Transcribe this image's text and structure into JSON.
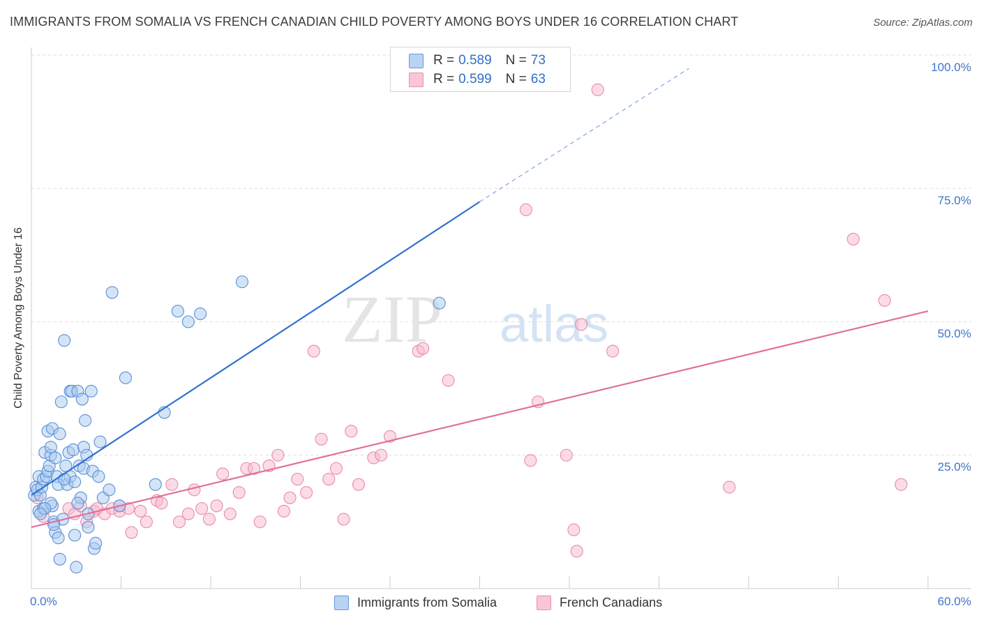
{
  "title": "IMMIGRANTS FROM SOMALIA VS FRENCH CANADIAN CHILD POVERTY AMONG BOYS UNDER 16 CORRELATION CHART",
  "source": "Source: ZipAtlas.com",
  "watermark": {
    "zip": "ZIP",
    "atlas": "atlas"
  },
  "legend": {
    "somalia": {
      "r_label": "R =",
      "r_value": "0.589",
      "n_label": "N =",
      "n_value": "73"
    },
    "french": {
      "r_label": "R =",
      "r_value": "0.599",
      "n_label": "N =",
      "n_value": "63"
    }
  },
  "bottom_legend": {
    "somalia": "Immigrants from Somalia",
    "french": "French Canadians"
  },
  "colors": {
    "somalia_fill": "#a9c9f0",
    "somalia_stroke": "#5b8fd6",
    "somalia_line": "#2f72cf",
    "french_fill": "#f7b9cd",
    "french_stroke": "#e88aa8",
    "french_line": "#e0709a",
    "tick_label": "#3f74c9",
    "grid": "#dddddd"
  },
  "chart_data": {
    "type": "scatter",
    "title": "IMMIGRANTS FROM SOMALIA VS FRENCH CANADIAN CHILD POVERTY AMONG BOYS UNDER 16 CORRELATION CHART",
    "xlabel": "",
    "ylabel": "Child Poverty Among Boys Under 16",
    "xlim": [
      0,
      60
    ],
    "ylim": [
      0,
      100
    ],
    "x_tick_labels": [
      "0.0%",
      "60.0%"
    ],
    "y_ticks": [
      25,
      50,
      75,
      100
    ],
    "y_tick_labels": [
      "25.0%",
      "50.0%",
      "75.0%",
      "100.0%"
    ],
    "grid": "horizontal dashed",
    "series": [
      {
        "name": "Immigrants from Somalia",
        "R": 0.589,
        "N": 73,
        "trend": {
          "x0": 0,
          "y0": 17.5,
          "x1": 30,
          "y1": 72.5,
          "dashed_to": [
            44,
            97.5
          ]
        },
        "points": [
          [
            0.2,
            17.5
          ],
          [
            0.3,
            19
          ],
          [
            0.4,
            18.5
          ],
          [
            0.5,
            21
          ],
          [
            0.5,
            14.5
          ],
          [
            0.6,
            17.5
          ],
          [
            0.7,
            19
          ],
          [
            0.8,
            15
          ],
          [
            0.8,
            20.5
          ],
          [
            0.9,
            25.5
          ],
          [
            1.0,
            21
          ],
          [
            1.1,
            29.5
          ],
          [
            1.1,
            22
          ],
          [
            1.2,
            23
          ],
          [
            1.3,
            25
          ],
          [
            1.3,
            26.5
          ],
          [
            1.4,
            30
          ],
          [
            1.4,
            15.5
          ],
          [
            1.5,
            12.5
          ],
          [
            1.6,
            24.5
          ],
          [
            1.6,
            10.5
          ],
          [
            1.7,
            21
          ],
          [
            1.8,
            9.5
          ],
          [
            1.8,
            19.5
          ],
          [
            1.9,
            29
          ],
          [
            1.9,
            5.5
          ],
          [
            2.0,
            35
          ],
          [
            2.1,
            13
          ],
          [
            2.2,
            46.5
          ],
          [
            2.3,
            23
          ],
          [
            2.4,
            19.5
          ],
          [
            2.5,
            25.5
          ],
          [
            2.6,
            37
          ],
          [
            2.6,
            21
          ],
          [
            2.7,
            37
          ],
          [
            2.8,
            26
          ],
          [
            2.9,
            10
          ],
          [
            2.9,
            20
          ],
          [
            3.0,
            4
          ],
          [
            3.1,
            37
          ],
          [
            3.2,
            23
          ],
          [
            3.3,
            17
          ],
          [
            3.4,
            35.5
          ],
          [
            3.5,
            22.5
          ],
          [
            3.5,
            26.5
          ],
          [
            3.6,
            31.5
          ],
          [
            3.7,
            25
          ],
          [
            3.8,
            11.5
          ],
          [
            3.8,
            14
          ],
          [
            4.0,
            37
          ],
          [
            4.1,
            22
          ],
          [
            4.2,
            7.5
          ],
          [
            4.3,
            8.5
          ],
          [
            4.5,
            21
          ],
          [
            4.6,
            27.5
          ],
          [
            4.8,
            17
          ],
          [
            5.2,
            18.5
          ],
          [
            5.4,
            55.5
          ],
          [
            5.9,
            15.5
          ],
          [
            6.3,
            39.5
          ],
          [
            8.3,
            19.5
          ],
          [
            8.9,
            33
          ],
          [
            9.8,
            52
          ],
          [
            10.5,
            50
          ],
          [
            11.3,
            51.5
          ],
          [
            14.1,
            57.5
          ],
          [
            27.3,
            53.5
          ],
          [
            1.3,
            16
          ],
          [
            0.9,
            15
          ],
          [
            2.2,
            20.5
          ],
          [
            3.1,
            16
          ],
          [
            1.5,
            12
          ],
          [
            0.6,
            14
          ]
        ]
      },
      {
        "name": "French Canadians",
        "R": 0.599,
        "N": 63,
        "trend": {
          "x0": 0,
          "y0": 11.5,
          "x1": 60,
          "y1": 52
        },
        "points": [
          [
            0.4,
            17
          ],
          [
            0.8,
            13.5
          ],
          [
            2.5,
            15
          ],
          [
            2.9,
            14
          ],
          [
            3.3,
            15.5
          ],
          [
            3.7,
            12.5
          ],
          [
            4.2,
            14.5
          ],
          [
            4.4,
            15
          ],
          [
            4.9,
            14
          ],
          [
            5.4,
            15
          ],
          [
            5.9,
            14.5
          ],
          [
            6.5,
            15
          ],
          [
            6.7,
            10.5
          ],
          [
            7.3,
            14.5
          ],
          [
            7.7,
            12.5
          ],
          [
            8.4,
            16.5
          ],
          [
            8.7,
            16
          ],
          [
            9.4,
            19.5
          ],
          [
            9.9,
            12.5
          ],
          [
            10.5,
            14
          ],
          [
            10.9,
            18.5
          ],
          [
            11.4,
            15
          ],
          [
            11.9,
            13
          ],
          [
            12.4,
            15.5
          ],
          [
            12.8,
            21.5
          ],
          [
            13.3,
            14
          ],
          [
            13.9,
            18
          ],
          [
            14.4,
            22.5
          ],
          [
            14.9,
            22.5
          ],
          [
            15.3,
            12.5
          ],
          [
            15.9,
            23
          ],
          [
            16.5,
            25
          ],
          [
            16.9,
            14.5
          ],
          [
            17.3,
            17
          ],
          [
            17.8,
            20.5
          ],
          [
            18.4,
            18
          ],
          [
            18.9,
            44.5
          ],
          [
            19.4,
            28
          ],
          [
            19.9,
            20.5
          ],
          [
            20.4,
            22.5
          ],
          [
            20.9,
            13
          ],
          [
            21.4,
            29.5
          ],
          [
            21.9,
            19.5
          ],
          [
            22.9,
            24.5
          ],
          [
            23.4,
            25
          ],
          [
            24.0,
            28.5
          ],
          [
            25.9,
            44.5
          ],
          [
            26.2,
            45
          ],
          [
            27.9,
            39
          ],
          [
            33.1,
            71
          ],
          [
            33.4,
            24
          ],
          [
            33.9,
            35
          ],
          [
            35.8,
            25
          ],
          [
            36.3,
            11
          ],
          [
            36.5,
            7
          ],
          [
            36.8,
            49.5
          ],
          [
            37.9,
            93.5
          ],
          [
            38.9,
            44.5
          ],
          [
            46.7,
            19
          ],
          [
            55.0,
            65.5
          ],
          [
            57.1,
            54
          ],
          [
            58.2,
            19.5
          ],
          [
            5.9,
            15.5
          ]
        ]
      }
    ]
  }
}
